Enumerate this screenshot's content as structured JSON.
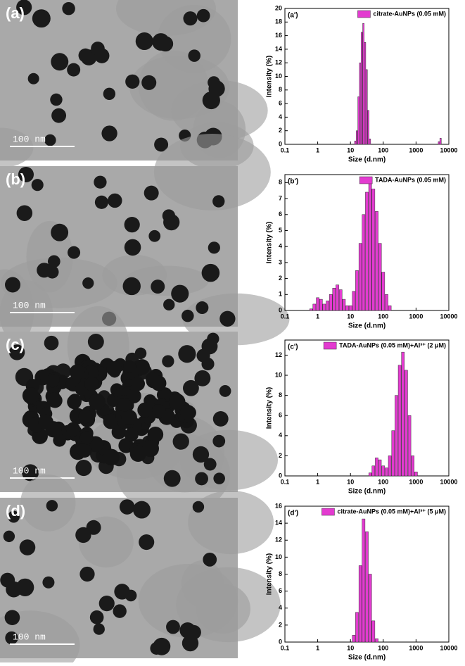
{
  "images": [
    {
      "label": "(a)",
      "scale_bar": "100 nm"
    },
    {
      "label": "(b)",
      "scale_bar": "100 nm"
    },
    {
      "label": "(c)",
      "scale_bar": "100 nm"
    },
    {
      "label": "(d)",
      "scale_bar": "100 nm"
    }
  ],
  "chart_data": [
    {
      "type": "bar",
      "title": "(a')",
      "xlabel": "Size (d.nm)",
      "ylabel": "Intensity (%)",
      "log_x": true,
      "legend": "upper right",
      "xlim": [
        0.1,
        10000
      ],
      "xticks": [
        0.1,
        1,
        10,
        100,
        1000,
        10000
      ],
      "ylim": [
        0,
        20
      ],
      "yticks": [
        0,
        2,
        4,
        6,
        8,
        10,
        12,
        14,
        16,
        18,
        20
      ],
      "x": [
        14.0,
        15.7,
        17.6,
        19.7,
        22.1,
        24.8,
        27.8,
        31.2,
        35.0,
        39.2,
        5000,
        5600
      ],
      "series": [
        {
          "name": "citrate-AuNPs (0.05 mM)",
          "color": "#e33bd0",
          "values": [
            0.5,
            2,
            7,
            12,
            16.5,
            17.8,
            15,
            11,
            5,
            0.8,
            0.4,
            0.9
          ]
        }
      ]
    },
    {
      "type": "bar",
      "title": "(b')",
      "xlabel": "Size (d.nm)",
      "ylabel": "Intensity (%)",
      "log_x": true,
      "legend": "upper right",
      "xlim": [
        0.1,
        10000
      ],
      "xticks": [
        0.1,
        1,
        10,
        100,
        1000,
        10000
      ],
      "ylim": [
        0,
        8.5
      ],
      "yticks": [
        0,
        1,
        2,
        3,
        4,
        5,
        6,
        7,
        8
      ],
      "x": [
        0.63,
        0.79,
        1.0,
        1.26,
        1.58,
        2.0,
        2.51,
        3.16,
        3.98,
        5.01,
        6.31,
        7.94,
        10,
        12.6,
        15.8,
        20.0,
        25.1,
        31.6,
        39.8,
        50.1,
        63.1,
        79.4,
        100,
        126,
        158
      ],
      "series": [
        {
          "name": "TADA-AuNPs (0.05 mM)",
          "color": "#e33bd0",
          "values": [
            0.1,
            0.4,
            0.8,
            0.7,
            0.4,
            0.6,
            1.0,
            1.4,
            1.6,
            1.3,
            0.7,
            0.3,
            0.3,
            1.2,
            2.5,
            4.2,
            6.0,
            7.4,
            8.0,
            7.6,
            6.2,
            4.2,
            2.4,
            1.0,
            0.3
          ]
        }
      ]
    },
    {
      "type": "bar",
      "title": "(c')",
      "xlabel": "Size (d.nm)",
      "ylabel": "Intensity (%)",
      "log_x": true,
      "legend": "upper right",
      "xlim": [
        0.1,
        10000
      ],
      "xticks": [
        0.1,
        1,
        10,
        100,
        1000,
        10000
      ],
      "ylim": [
        0,
        13.5
      ],
      "yticks": [
        0,
        2,
        4,
        6,
        8,
        10,
        12
      ],
      "x": [
        40,
        50,
        63,
        79,
        100,
        126,
        158,
        200,
        251,
        316,
        398,
        501,
        631,
        794,
        1000
      ],
      "series": [
        {
          "name": "TADA-AuNPs (0.05 mM)+Al³⁺ (2 μM)",
          "color": "#e33bd0",
          "values": [
            0.3,
            1.0,
            1.8,
            1.6,
            1.0,
            0.8,
            2.0,
            4.5,
            8.0,
            11.0,
            12.3,
            10.5,
            6.0,
            2.0,
            0.4
          ]
        }
      ]
    },
    {
      "type": "bar",
      "title": "(d')",
      "xlabel": "Size (d.nm)",
      "ylabel": "Intensity (%)",
      "log_x": true,
      "legend": "upper right",
      "xlim": [
        0.1,
        10000
      ],
      "xticks": [
        0.1,
        1,
        10,
        100,
        1000,
        10000
      ],
      "ylim": [
        0,
        16
      ],
      "yticks": [
        0,
        2,
        4,
        6,
        8,
        10,
        12,
        14,
        16
      ],
      "x": [
        12.6,
        15.8,
        20.0,
        25.1,
        31.6,
        39.8,
        50.1,
        63.1
      ],
      "series": [
        {
          "name": "citrate-AuNPs (0.05 mM)+Al³⁺ (5 μM)",
          "color": "#e33bd0",
          "values": [
            0.8,
            3.5,
            9.0,
            14.5,
            13.0,
            8.0,
            2.5,
            0.4
          ]
        }
      ]
    }
  ]
}
